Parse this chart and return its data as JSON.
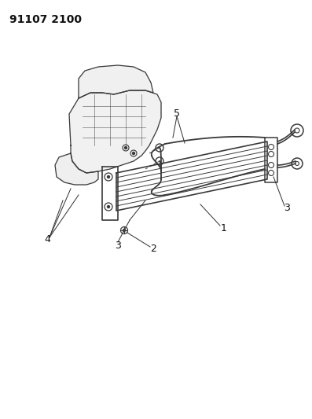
{
  "title_code": "91107 2100",
  "bg_color": "#ffffff",
  "line_color": "#3a3a3a",
  "fig_width": 3.97,
  "fig_height": 5.33,
  "dpi": 100
}
